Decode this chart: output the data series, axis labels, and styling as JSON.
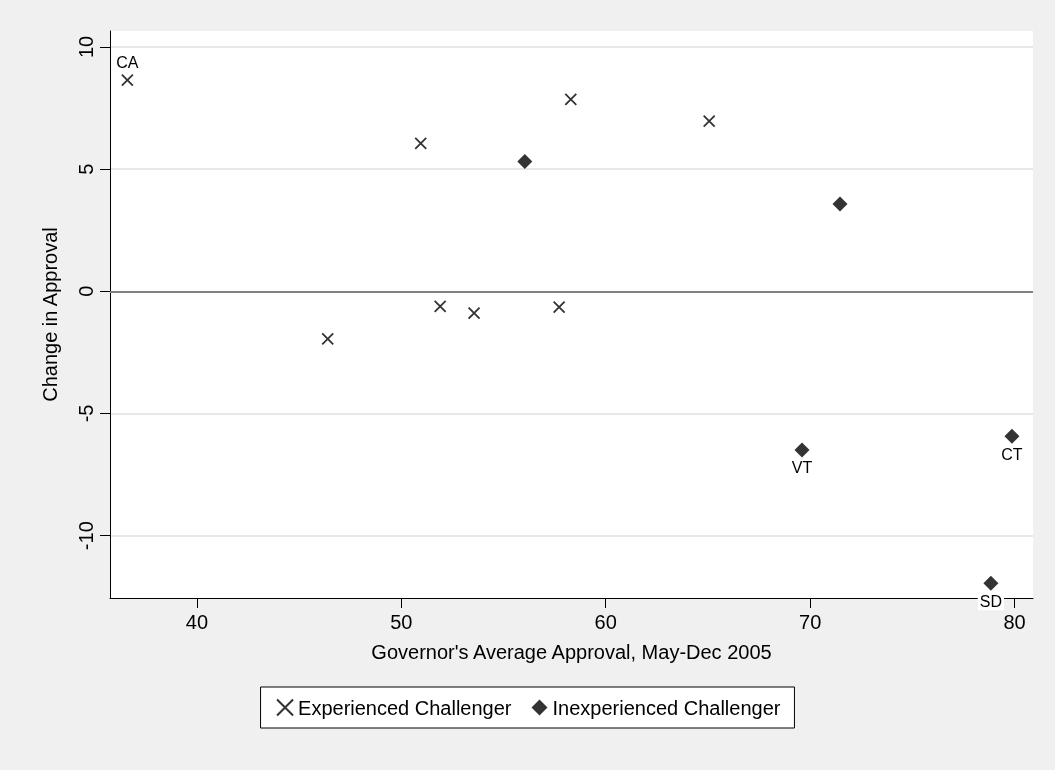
{
  "chart_data": {
    "type": "scatter",
    "xlabel": "Governor's Average Approval, May-Dec 2005",
    "ylabel": "Change in Approval",
    "xlim": [
      35.75,
      80.9
    ],
    "xticks": [
      40,
      50,
      60,
      70,
      80
    ],
    "ylim": [
      -12.55,
      10.65
    ],
    "yticks": [
      -10,
      -5,
      0,
      5,
      10
    ],
    "grid": "y",
    "legend": "bottom",
    "series": [
      {
        "name": "Experienced Challenger",
        "color": "#000000",
        "marker": "cross",
        "x": [
          36.6,
          46.4,
          50.95,
          51.9,
          53.56,
          58.29,
          57.72,
          65.06
        ],
        "values": [
          8.64,
          -1.95,
          6.05,
          -0.62,
          -0.89,
          7.85,
          -0.65,
          6.96
        ]
      },
      {
        "name": "Inexperienced Challenger",
        "color": "#000000",
        "marker": "diamond",
        "x": [
          56.04,
          71.46,
          69.6,
          79.87,
          78.84
        ],
        "values": [
          5.31,
          3.57,
          -6.49,
          -5.93,
          -11.95
        ]
      }
    ],
    "ref_lines": [
      {
        "axis": "y",
        "value": 0,
        "color": "#808080"
      }
    ],
    "annotations": [
      {
        "text": "CA",
        "x": 36.6,
        "y": 8.64
      },
      {
        "text": "VT",
        "x": 69.6,
        "y": -6.49
      },
      {
        "text": "CT",
        "x": 79.87,
        "y": -5.93
      },
      {
        "text": "SD",
        "x": 78.84,
        "y": -11.95
      }
    ]
  }
}
